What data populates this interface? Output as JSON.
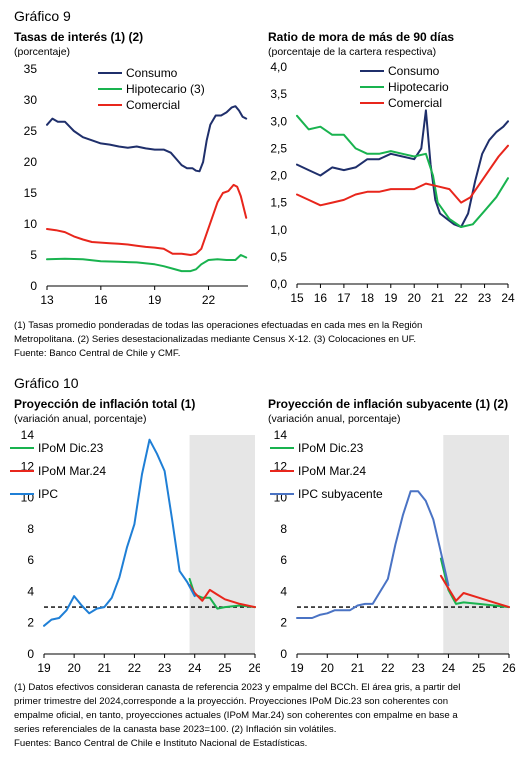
{
  "figure9": {
    "label": "Gráfico 9",
    "notes": [
      "(1) Tasas promedio ponderadas de todas las operaciones efectuadas en cada mes en la Región",
      "Metropolitana. (2) Series desestacionalizadas mediante Census X-12. (3) Colocaciones en UF.",
      "Fuente: Banco Central de Chile y CMF."
    ]
  },
  "figure10": {
    "label": "Gráfico 10",
    "notes": [
      "(1) Datos efectivos consideran canasta de referencia 2023 y empalme del BCCh. El área gris, a partir del",
      "primer trimestre del 2024,corresponde a la proyección. Proyecciones IPoM Dic.23 son coherentes con",
      "empalme oficial, en tanto, proyecciones actuales (IPoM Mar.24) son coherentes con empalme en base a",
      "series referenciales de la canasta base 2023=100. (2) Inflación sin volátiles.",
      "Fuentes: Banco Central de Chile e Instituto Nacional de Estadísticas."
    ]
  },
  "colors": {
    "navy": "#1f2f6b",
    "green": "#19b34f",
    "red": "#e8261c",
    "blue": "#1f7fd6",
    "steel": "#4a73c4",
    "shade": "#e6e6e6"
  },
  "chart_data": [
    {
      "type": "line",
      "title": "Tasas de interés (1) (2)",
      "subtitle": "(porcentaje)",
      "ylim": [
        0,
        35
      ],
      "yticks": [
        "0",
        "5",
        "10",
        "15",
        "20",
        "25",
        "30",
        "35"
      ],
      "xlim": [
        2013,
        2024.2
      ],
      "xticks": [
        "13",
        "16",
        "19",
        "22"
      ],
      "legend": "top-left",
      "series": [
        {
          "name": "Consumo",
          "color": "#1f2f6b",
          "x": [
            2013,
            2013.3,
            2013.6,
            2014,
            2014.5,
            2015,
            2015.5,
            2016,
            2016.5,
            2017,
            2017.5,
            2018,
            2018.5,
            2019,
            2019.5,
            2019.9,
            2020.2,
            2020.5,
            2020.8,
            2021.1,
            2021.3,
            2021.5,
            2021.7,
            2021.9,
            2022.1,
            2022.4,
            2022.7,
            2023,
            2023.3,
            2023.5,
            2023.7,
            2023.9,
            2024.1
          ],
          "y": [
            26,
            27,
            26.5,
            26.5,
            25,
            24,
            23.5,
            23,
            22.8,
            22.5,
            22.3,
            22.5,
            22.2,
            22,
            22,
            21.5,
            20.5,
            19.5,
            19,
            19,
            18.6,
            18.5,
            20,
            23.5,
            26,
            27.5,
            27.5,
            28,
            28.8,
            29,
            28.3,
            27.3,
            27
          ]
        },
        {
          "name": "Hipotecario (3)",
          "color": "#19b34f",
          "x": [
            2013,
            2014,
            2015,
            2016,
            2017,
            2018,
            2019,
            2019.5,
            2020,
            2020.5,
            2021,
            2021.3,
            2021.6,
            2022,
            2022.5,
            2023,
            2023.5,
            2023.8,
            2024.1
          ],
          "y": [
            4.3,
            4.4,
            4.3,
            4,
            3.9,
            3.8,
            3.5,
            3.2,
            2.8,
            2.4,
            2.4,
            2.7,
            3.5,
            4.2,
            4.3,
            4.2,
            4.2,
            5,
            4.6
          ]
        },
        {
          "name": "Comercial",
          "color": "#e8261c",
          "x": [
            2013,
            2013.5,
            2014,
            2014.5,
            2015,
            2015.5,
            2016,
            2016.5,
            2017,
            2017.5,
            2018,
            2018.5,
            2019,
            2019.5,
            2020,
            2020.5,
            2021,
            2021.3,
            2021.6,
            2021.9,
            2022.2,
            2022.5,
            2022.8,
            2023.1,
            2023.4,
            2023.6,
            2023.8,
            2024.1
          ],
          "y": [
            9.2,
            9,
            8.7,
            8,
            7.5,
            7.1,
            7,
            6.9,
            6.8,
            6.7,
            6.5,
            6.3,
            6.2,
            6,
            5.2,
            5.2,
            5,
            5.2,
            6,
            8.5,
            11,
            13.5,
            15,
            15.3,
            16.3,
            16,
            14.5,
            11
          ]
        }
      ]
    },
    {
      "type": "line",
      "title": "Ratio de mora de más de 90 días",
      "subtitle": "(porcentaje de la cartera respectiva)",
      "ylim": [
        0,
        4
      ],
      "yticks": [
        "0,0",
        "0,5",
        "1,0",
        "1,5",
        "2,0",
        "2,5",
        "3,0",
        "3,5",
        "4,0"
      ],
      "xlim": [
        2015,
        2024
      ],
      "xticks": [
        "15",
        "16",
        "17",
        "18",
        "19",
        "20",
        "21",
        "22",
        "23",
        "24"
      ],
      "legend": "top-right",
      "series": [
        {
          "name": "Consumo",
          "color": "#1f2f6b",
          "x": [
            2015,
            2015.5,
            2016,
            2016.5,
            2017,
            2017.5,
            2018,
            2018.5,
            2019,
            2019.5,
            2020,
            2020.3,
            2020.5,
            2020.7,
            2020.9,
            2021.1,
            2021.4,
            2021.7,
            2022,
            2022.3,
            2022.6,
            2022.9,
            2023.2,
            2023.5,
            2023.8,
            2024
          ],
          "y": [
            2.2,
            2.1,
            2,
            2.15,
            2.1,
            2.15,
            2.3,
            2.3,
            2.4,
            2.35,
            2.3,
            2.5,
            3.2,
            2.2,
            1.55,
            1.3,
            1.2,
            1.1,
            1.05,
            1.3,
            1.9,
            2.4,
            2.65,
            2.8,
            2.9,
            3
          ]
        },
        {
          "name": "Hipotecario",
          "color": "#19b34f",
          "x": [
            2015,
            2015.5,
            2016,
            2016.5,
            2017,
            2017.5,
            2018,
            2018.5,
            2019,
            2019.5,
            2020,
            2020.5,
            2020.8,
            2021,
            2021.5,
            2022,
            2022.5,
            2023,
            2023.5,
            2024
          ],
          "y": [
            3.1,
            2.85,
            2.9,
            2.75,
            2.75,
            2.5,
            2.4,
            2.4,
            2.45,
            2.4,
            2.35,
            2.4,
            2,
            1.5,
            1.2,
            1.05,
            1.1,
            1.35,
            1.6,
            1.95
          ]
        },
        {
          "name": "Comercial",
          "color": "#e8261c",
          "x": [
            2015,
            2015.5,
            2016,
            2016.5,
            2017,
            2017.5,
            2018,
            2018.5,
            2019,
            2019.5,
            2020,
            2020.5,
            2021,
            2021.5,
            2022,
            2022.4,
            2022.8,
            2023.2,
            2023.6,
            2024
          ],
          "y": [
            1.65,
            1.55,
            1.45,
            1.5,
            1.55,
            1.65,
            1.7,
            1.7,
            1.75,
            1.75,
            1.75,
            1.85,
            1.8,
            1.75,
            1.5,
            1.6,
            1.85,
            2.1,
            2.35,
            2.55
          ]
        }
      ]
    },
    {
      "type": "line",
      "title": "Proyección de inflación total (1)",
      "subtitle": "(variación anual, porcentaje)",
      "ylim": [
        0,
        14
      ],
      "yticks": [
        "0",
        "2",
        "4",
        "6",
        "8",
        "10",
        "12",
        "14"
      ],
      "xlim": [
        2019,
        2026
      ],
      "xticks": [
        "19",
        "20",
        "21",
        "22",
        "23",
        "24",
        "25",
        "26"
      ],
      "shaded_from": 2023.83,
      "reference_line": 3,
      "legend": "top-left",
      "series": [
        {
          "name": "IPoM Dic.23",
          "color": "#19b34f",
          "x": [
            2023.83,
            2024,
            2024.25,
            2024.5,
            2024.75,
            2025,
            2025.5,
            2026
          ],
          "y": [
            4.8,
            3.8,
            3.6,
            3.6,
            2.9,
            3,
            3.1,
            3
          ]
        },
        {
          "name": "IPoM Mar.24",
          "color": "#e8261c",
          "x": [
            2023.83,
            2024,
            2024.25,
            2024.5,
            2024.75,
            2025,
            2025.5,
            2026
          ],
          "y": [
            4.4,
            3.9,
            3.4,
            4.1,
            3.8,
            3.5,
            3.2,
            3
          ]
        },
        {
          "name": "IPC",
          "color": "#1f7fd6",
          "x": [
            2019,
            2019.25,
            2019.5,
            2019.75,
            2020,
            2020.25,
            2020.5,
            2020.75,
            2021,
            2021.25,
            2021.5,
            2021.75,
            2022,
            2022.25,
            2022.5,
            2022.75,
            2023,
            2023.25,
            2023.5,
            2023.75,
            2024
          ],
          "y": [
            1.8,
            2.2,
            2.3,
            2.8,
            3.7,
            3.1,
            2.6,
            2.9,
            3,
            3.6,
            4.9,
            6.8,
            8.3,
            11.5,
            13.7,
            12.8,
            11.7,
            8.6,
            5.3,
            4.6,
            3.7
          ]
        }
      ]
    },
    {
      "type": "line",
      "title": "Proyección de inflación subyacente (1) (2)",
      "subtitle": "(variación anual, porcentaje)",
      "ylim": [
        0,
        14
      ],
      "yticks": [
        "0",
        "2",
        "4",
        "6",
        "8",
        "10",
        "12",
        "14"
      ],
      "xlim": [
        2019,
        2026
      ],
      "xticks": [
        "19",
        "20",
        "21",
        "22",
        "23",
        "24",
        "25",
        "26"
      ],
      "shaded_from": 2023.83,
      "reference_line": 3,
      "legend": "top-left",
      "series": [
        {
          "name": "IPoM Dic.23",
          "color": "#19b34f",
          "x": [
            2023.75,
            2024,
            2024.25,
            2024.5,
            2025,
            2025.5,
            2026
          ],
          "y": [
            6.1,
            4.1,
            3.2,
            3.3,
            3.2,
            3.1,
            3
          ]
        },
        {
          "name": "IPoM Mar.24",
          "color": "#e8261c",
          "x": [
            2023.75,
            2024,
            2024.25,
            2024.5,
            2025,
            2025.5,
            2026
          ],
          "y": [
            5,
            4.2,
            3.4,
            3.9,
            3.6,
            3.3,
            3
          ]
        },
        {
          "name": "IPC subyacente",
          "color": "#4a73c4",
          "x": [
            2019,
            2019.25,
            2019.5,
            2019.75,
            2020,
            2020.25,
            2020.5,
            2020.75,
            2021,
            2021.25,
            2021.5,
            2021.75,
            2022,
            2022.25,
            2022.5,
            2022.75,
            2023,
            2023.25,
            2023.5,
            2023.75,
            2024
          ],
          "y": [
            2.3,
            2.3,
            2.3,
            2.5,
            2.6,
            2.8,
            2.8,
            2.8,
            3.1,
            3.2,
            3.2,
            4,
            4.8,
            7,
            8.9,
            10.4,
            10.4,
            9.8,
            8.6,
            6.5,
            4.4
          ]
        }
      ]
    }
  ]
}
